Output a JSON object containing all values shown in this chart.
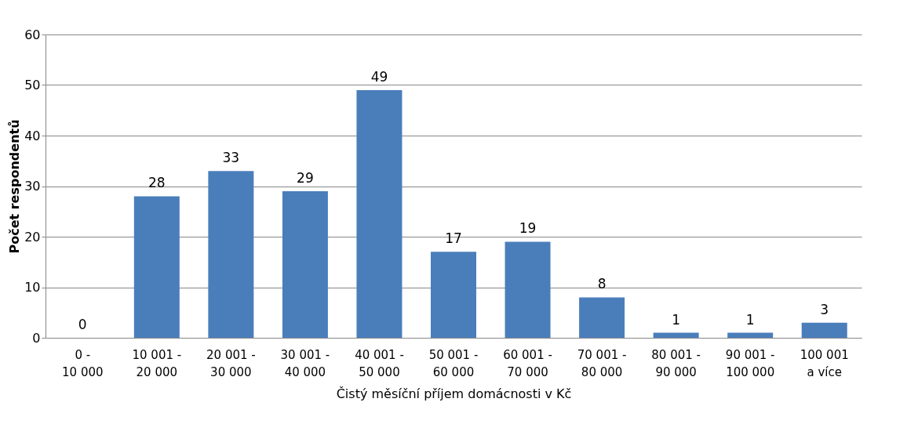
{
  "chart_data": {
    "type": "bar",
    "xlabel": "Čistý měsíční příjem domácnosti v Kč",
    "ylabel": "Počet respondentů",
    "categories": [
      "0  -\n10 000",
      "10 001 -\n20 000",
      "20 001 -\n30 000",
      "30 001 -\n40 000",
      "40 001 -\n50 000",
      "50 001 -\n60 000",
      "60 001 -\n70 000",
      "70 001 -\n80 000",
      "80 001 -\n90 000",
      "90 001 -\n100 000",
      "100 001\na více"
    ],
    "values": [
      0,
      28,
      33,
      29,
      49,
      17,
      19,
      8,
      1,
      1,
      3
    ],
    "color": "#4a7ebb",
    "ylim": [
      0,
      60
    ],
    "yticks": [
      0,
      10,
      20,
      30,
      40,
      50,
      60
    ],
    "grid": "y",
    "data_labels": true
  }
}
